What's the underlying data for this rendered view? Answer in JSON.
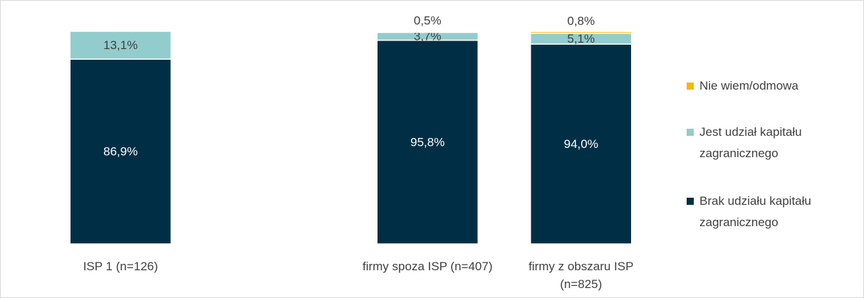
{
  "chart_data": {
    "type": "stacked_bar",
    "categories": [
      "ISP 1 (n=126)",
      null,
      "firmy spoza ISP (n=407)",
      "firmy z obszaru ISP (n=825)"
    ],
    "series": [
      {
        "name": "Brak udziału kapitału zagranicznego",
        "color": "#002f45",
        "values": [
          86.9,
          null,
          95.8,
          94.0
        ],
        "value_labels": [
          "86,9%",
          null,
          "95,8%",
          "94,0%"
        ]
      },
      {
        "name": "Jest udział kapitału zagranicznego",
        "color": "#93cccc",
        "values": [
          13.1,
          null,
          3.7,
          5.1
        ],
        "value_labels": [
          "13,1%",
          null,
          "3,7%",
          "5,1%"
        ]
      },
      {
        "name": "Nie wiem/odmowa",
        "color": "#f5b800",
        "values": [
          null,
          null,
          0.5,
          0.8
        ],
        "value_labels": [
          null,
          null,
          "0,5%",
          "0,8%"
        ]
      }
    ],
    "ylim": [
      0,
      100
    ]
  }
}
